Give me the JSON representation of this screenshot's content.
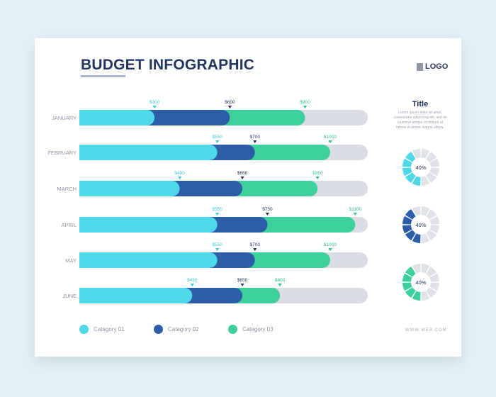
{
  "header": {
    "title": "BUDGET INFOGRAPHIC",
    "logo": "LOGO"
  },
  "side": {
    "title": "Title",
    "text": "Lorem ipsum dolor sit amet, consectetur adipiscing elit, sed do eiusmod tempor incididunt ut labore et dolore magna aliqua."
  },
  "footer": {
    "web": "WWW.WEB.COM"
  },
  "colors": {
    "category_01": "#4fd7ea",
    "category_02": "#2c5ea8",
    "category_03": "#3dd09a",
    "remainder": "#dadde3"
  },
  "chart_data": [
    {
      "type": "bar",
      "orientation": "horizontal",
      "stacked": true,
      "categories": [
        "JANUARY",
        "FEBRUARY",
        "MARCH",
        "APRIL",
        "MAY",
        "JUNE"
      ],
      "series": [
        {
          "name": "Category 01",
          "values": [
            300,
            550,
            400,
            550,
            550,
            450
          ]
        },
        {
          "name": "Category 02",
          "values": [
            300,
            150,
            250,
            200,
            150,
            200
          ]
        },
        {
          "name": "Category 03",
          "values": [
            300,
            300,
            300,
            350,
            300,
            150
          ]
        }
      ],
      "cumulative_labels": [
        [
          "$300",
          "$600",
          "$900"
        ],
        [
          "$550",
          "$700",
          "$1000"
        ],
        [
          "$400",
          "$650",
          "$950"
        ],
        [
          "$550",
          "$750",
          "$1100"
        ],
        [
          "$550",
          "$700",
          "$1000"
        ],
        [
          "$450",
          "$650",
          "$800"
        ]
      ],
      "xlim": [
        0,
        1150
      ],
      "legend": "bottom",
      "grid": false
    },
    {
      "type": "pie",
      "variant": "segmented-ring",
      "charts": [
        {
          "label": "40%",
          "percent": 40,
          "segments": 12,
          "color": "#4fd7ea"
        },
        {
          "label": "40%",
          "percent": 40,
          "segments": 12,
          "color": "#2c5ea8"
        },
        {
          "label": "40%",
          "percent": 40,
          "segments": 12,
          "color": "#3dd09a"
        }
      ]
    }
  ]
}
